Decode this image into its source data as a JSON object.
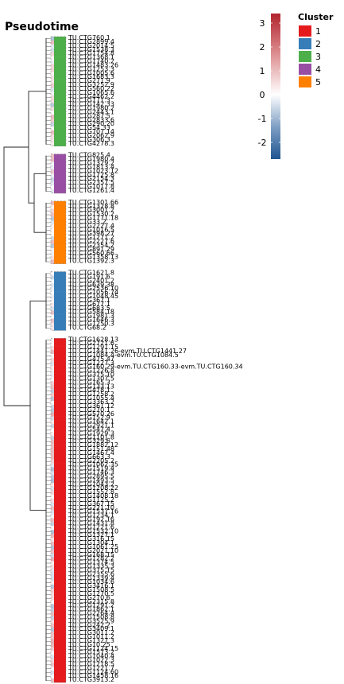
{
  "chart_data": {
    "type": "heatmap",
    "title": "Pseudotime",
    "colorbar": {
      "ticks": [
        3,
        2,
        1,
        0,
        -1,
        -2
      ],
      "range": [
        -2.7,
        3.4
      ],
      "colors": {
        "low": "#1f5591",
        "mid": "#ffffff",
        "high": "#b2242e"
      }
    },
    "cluster_legend": {
      "title": "Cluster",
      "entries": [
        {
          "label": "1",
          "color": "#e41a1c"
        },
        {
          "label": "2",
          "color": "#377eb8"
        },
        {
          "label": "3",
          "color": "#4daf4a"
        },
        {
          "label": "4",
          "color": "#984ea3"
        },
        {
          "label": "5",
          "color": "#ff7f00"
        }
      ]
    },
    "groups": [
      {
        "cluster": "3",
        "rows": [
          "TU.CTG760.1",
          "TU.CTG2899.4",
          "TU.CTG2014.5",
          "TU.CTG1538.3",
          "TU.CTG1754.8",
          "TU.CTG1368.1",
          "TU.CTG1740.2",
          "TU.CTG1483.26",
          "TU.CTG1253.3",
          "TU.CTG1005.6",
          "TU.CTG1683.3",
          "TU.CTG271.9",
          "TU.CTG3252.9",
          "TU.CTG560.22",
          "TU.CTG1065.6",
          "TU.CTG4462.2",
          "TU.CTG171.3",
          "TU.CTG142.33",
          "TU.CTG1980.2",
          "TU.CTG2443.1",
          "TU.CTG287.5",
          "TU.CTG2833.6",
          "TU.CTG290.20",
          "TU.CTG54.33",
          "TU.CTG707.14",
          "TU.CTG2062.9",
          "TU.CTG306.3",
          "TU.CTG4278.3"
        ]
      },
      {
        "cluster": "4",
        "rows": [
          "TU.CTG825.4",
          "TU.CTG1980.4",
          "TU.CTG1329.2",
          "TU.CTG1813.4",
          "TU.CTG1023.12",
          "TU.CTG1725.8",
          "TU.CTG2154.3",
          "TU.CTG2357.5",
          "TU.CTG1017.8",
          "TU.CTG1261.4"
        ]
      },
      {
        "cluster": "5",
        "rows": [
          "TU.CTG1301.66",
          "TU.CTG1328.8",
          "TU.CTG3001.2",
          "TU.CTG1530.2",
          "TU.CTG1771.18",
          "TU.CTG33.2",
          "TU.CTG2227.4",
          "TU.CTG1016.5",
          "TU.CTG398.27",
          "TU.CTG1271.2",
          "TU.CTG2227.6",
          "TU.CTG2354.2",
          "TU.CTG891.29",
          "TU.CTG560.66",
          "TU.CTG1358.13",
          "TU.CTG1392.3"
        ]
      },
      {
        "cluster": "2",
        "rows": [
          "TU.CTG1621.8",
          "TU.CTG191.6",
          "TU.CTG2401.2",
          "TU.CTG639.38",
          "TU.CTG2536.10",
          "TU.CTG1056.74",
          "TU.CTG1048.45",
          "TU.CTG367.1",
          "TU.CTG677.1",
          "TU.CTG683.5",
          "TU.CTG584.18",
          "TU.CTG1981.3",
          "TU.CTG1646.3",
          "TU.CTG1250.3",
          "TU.CTG68.2"
        ]
      },
      {
        "cluster": "1",
        "rows": [
          "TU.CTG1628.13",
          "TU.CTG2721.6",
          "TU.CTG1291.15",
          "TU.CTG1441.26-evm.TU.CTG1441.27",
          "TU.CTG1084.4-evm.TU.CTG1084.5",
          "TU.CTG475.47",
          "TU.CTG1227.3",
          "TU.CTG160.29-evm.TU.CTG160.33-evm.TU.CTG160.34",
          "TU.CTG1226.8",
          "TU.CTG375.10",
          "TU.CTG1307.5",
          "TU.CTG165.3",
          "TU.CTG133.13",
          "TU.CTG478.1",
          "TU.CTG1258.2",
          "TU.CTG1055.4",
          "TU.CTG3363.2",
          "TU.CTG361.12",
          "TU.CTG270.1",
          "TU.CTG570.26",
          "TU.CTG152.9",
          "TU.CTG1642.1",
          "TU.CTG2921.1",
          "TU.CTG547.4",
          "TU.CTG1929.3",
          "TU.CTG1101.8",
          "TU.CTG329.6",
          "TU.CTG1882.12",
          "TU.CTG151.48",
          "TU.CTG1467.4",
          "TU.CTG663.3",
          "TU.CTG2205.2",
          "TU.CTG1062.35",
          "TU.CTG1519.4",
          "TU.CTG1746.3",
          "TU.CTG2895.5",
          "TU.CTG1493.5",
          "TU.CTG1043.2",
          "TU.CTG1208.22",
          "TU.CTG1552.8",
          "TU.CTG1408.18",
          "TU.CTG1125.2",
          "TU.CTG367.15",
          "TU.CTG221.10",
          "TU.CTG1537.16",
          "TU.CTG1234.1",
          "TU.CTG192.16",
          "TU.CTG1431.8",
          "TU.CTG1221.6",
          "TU.CTG1532.10",
          "TU.CTG1327.1",
          "TU.CTG316.15",
          "TU.CTG1304.1",
          "TU.CTG1061.25",
          "TU.CTG2021.10",
          "TU.CTG168.15",
          "TU.CTG1282.2",
          "TU.CTG1374.5",
          "TU.CTG1335.3",
          "TU.CTG375.15",
          "TU.CTG2355.6",
          "TU.CTG1339.4",
          "TU.CTG1034.6",
          "TU.CTG3416.1",
          "TU.CTG1508.5",
          "TU.CTG1270.5",
          "TU.CTG270.6",
          "TU.CTG2315.8",
          "TU.CTG1291.2",
          "TU.CTG1862.1",
          "TU.CTG2264.4",
          "TU.CTG1508.8",
          "TU.CTG3525.9",
          "TU.CTG242.2",
          "TU.CTG3409.1",
          "TU.CTG3011.2",
          "TU.CTG1011.2",
          "TU.CTG1327.3",
          "TU.CTG10.25",
          "TU.CTG1124.15",
          "TU.CTG1573.2",
          "TU.CTG1040.4",
          "TU.CTG1022.3",
          "TU.CTG1218.5",
          "TU.CTG1221.7",
          "TU.CTG1124.60",
          "TU.CTG1458.16",
          "TU.CTG3913.2"
        ]
      }
    ]
  }
}
